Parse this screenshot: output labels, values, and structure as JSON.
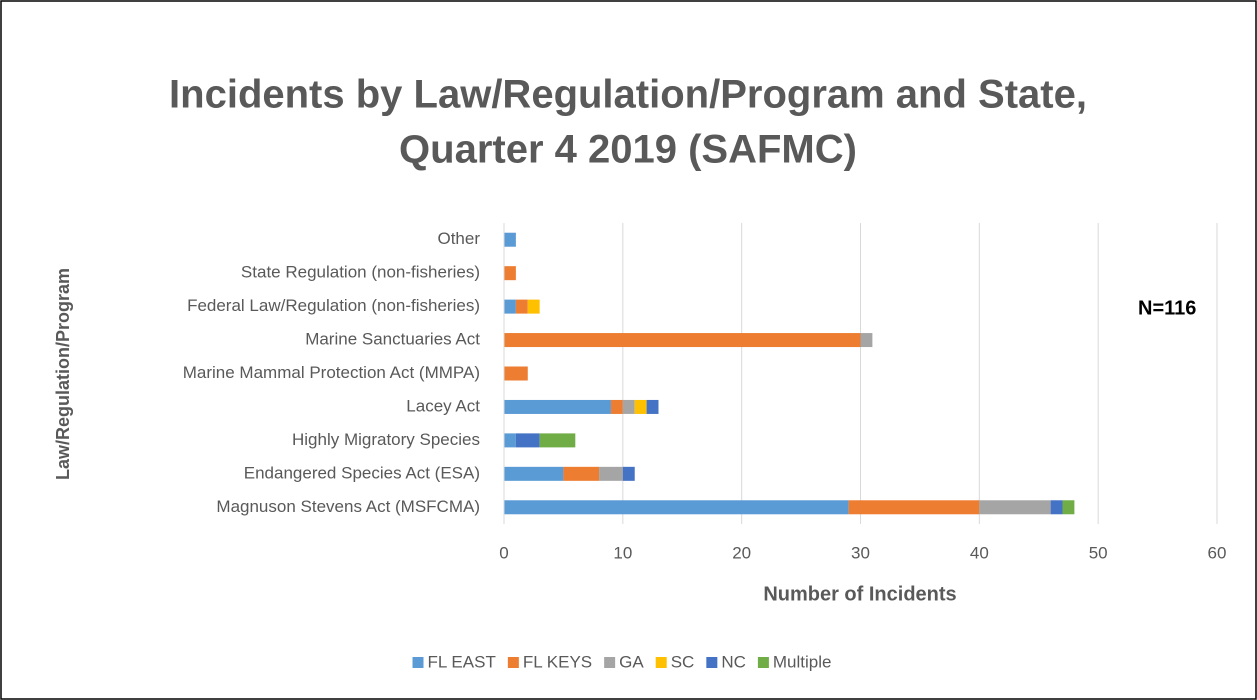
{
  "chart_data": {
    "type": "stacked_bar_horizontal",
    "title": [
      "Incidents by Law/Regulation/Program and State,",
      "Quarter 4 2019 (SAFMC)"
    ],
    "x_label": "Number of Incidents",
    "y_label": "Law/Regulation/Program",
    "annotation": "N=116",
    "categories": [
      "Other",
      "State Regulation (non-fisheries)",
      "Federal Law/Regulation (non-fisheries)",
      "Marine Sanctuaries Act",
      "Marine Mammal Protection Act (MMPA)",
      "Lacey Act",
      "Highly Migratory Species",
      "Endangered Species Act (ESA)",
      "Magnuson Stevens Act (MSFCMA)"
    ],
    "series": [
      {
        "name": "FL EAST",
        "color": "#5b9bd5",
        "values": [
          1,
          0,
          1,
          0,
          0,
          9,
          1,
          5,
          29
        ]
      },
      {
        "name": "FL KEYS",
        "color": "#ed7d31",
        "values": [
          0,
          1,
          1,
          30,
          2,
          1,
          0,
          3,
          11
        ]
      },
      {
        "name": "GA",
        "color": "#a5a5a5",
        "values": [
          0,
          0,
          0,
          1,
          0,
          1,
          0,
          2,
          6
        ]
      },
      {
        "name": "SC",
        "color": "#ffc000",
        "values": [
          0,
          0,
          1,
          0,
          0,
          1,
          0,
          0,
          0
        ]
      },
      {
        "name": "NC",
        "color": "#4472c4",
        "values": [
          0,
          0,
          0,
          0,
          0,
          1,
          2,
          1,
          1
        ]
      },
      {
        "name": "Multiple",
        "color": "#70ad47",
        "values": [
          0,
          0,
          0,
          0,
          0,
          0,
          3,
          0,
          1
        ]
      }
    ],
    "xlim": [
      0,
      60
    ],
    "xticks": [
      0,
      10,
      20,
      30,
      40,
      50,
      60
    ],
    "grid": true,
    "legend": "bottom"
  }
}
